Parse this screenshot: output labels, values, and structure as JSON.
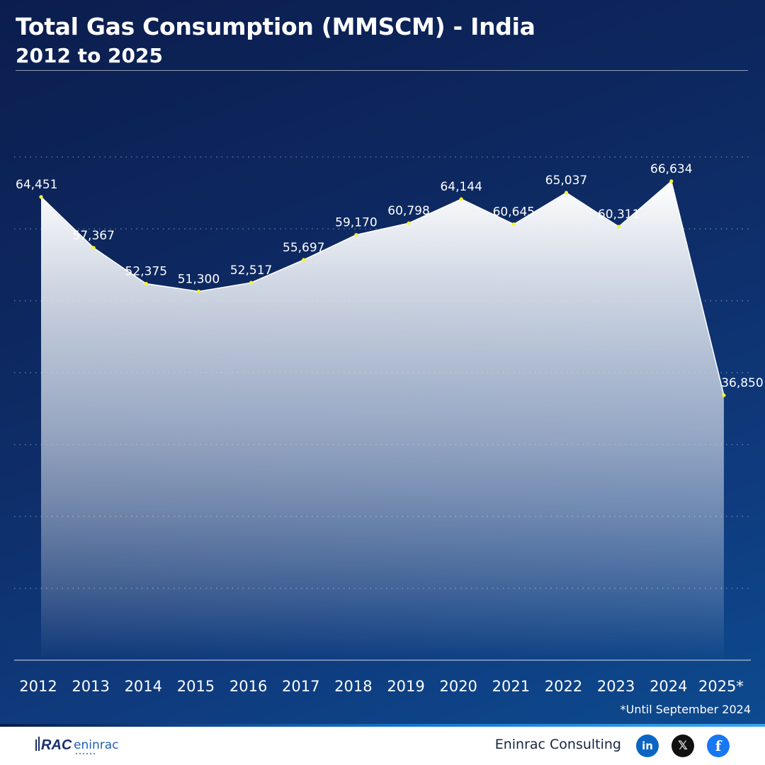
{
  "header": {
    "title": "Total Gas Consumption (MMSCM) - India",
    "subtitle": "2012 to 2025"
  },
  "chart_data": {
    "type": "area",
    "title": "Total Gas Consumption (MMSCM) - India",
    "subtitle": "2012 to 2025",
    "xlabel": "",
    "ylabel": "",
    "categories": [
      "2012",
      "2013",
      "2014",
      "2015",
      "2016",
      "2017",
      "2018",
      "2019",
      "2020",
      "2021",
      "2022",
      "2023",
      "2024",
      "2025*"
    ],
    "values": [
      64451,
      57367,
      52375,
      51300,
      52517,
      55697,
      59170,
      60798,
      64144,
      60645,
      65037,
      60311,
      66634,
      36850
    ],
    "labels": [
      "64,451",
      "57,367",
      "52,375",
      "51,300",
      "52,517",
      "55,697",
      "59,170",
      "60,798",
      "64,144",
      "60,645",
      "65,037",
      "60,311",
      "66,634",
      "36,850"
    ],
    "ylim": [
      0,
      70000
    ],
    "grid": true,
    "legend": "none",
    "line_color": "#ffffff",
    "marker_color": "#f5f532",
    "annotation": "*Until September 2024"
  },
  "footnote": "*Until September 2024",
  "footer": {
    "logo_text": "eninrac",
    "brand": "Eninrac Consulting",
    "social": [
      {
        "name": "linkedin-icon",
        "glyph": "in"
      },
      {
        "name": "x-icon",
        "glyph": "𝕏"
      },
      {
        "name": "facebook-icon",
        "glyph": "f"
      }
    ]
  },
  "colors": {
    "background_top": "#0b1d4e",
    "background_bottom": "#0d4a8f",
    "accent": "#1479d0"
  }
}
